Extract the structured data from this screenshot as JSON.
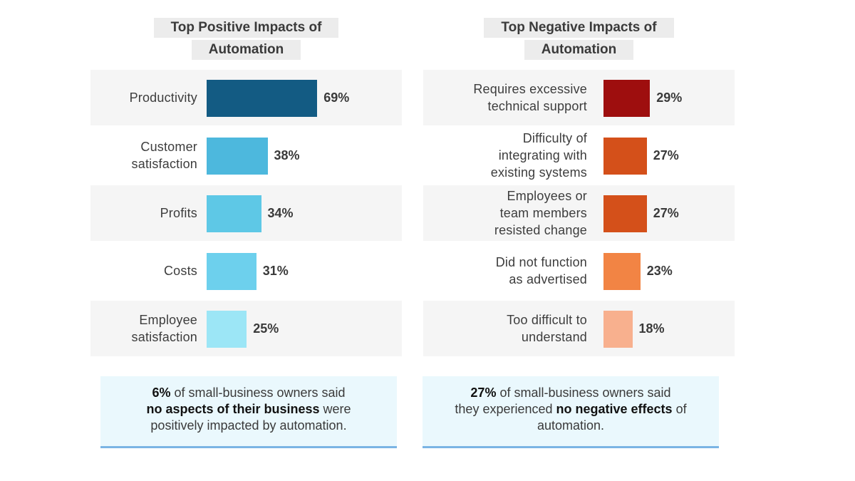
{
  "chart_data": [
    {
      "type": "bar",
      "orientation": "horizontal",
      "title_lines": [
        "Top Positive Impacts of",
        "Automation"
      ],
      "categories": [
        [
          "Productivity"
        ],
        [
          "Customer",
          "satisfaction"
        ],
        [
          "Profits"
        ],
        [
          "Costs"
        ],
        [
          "Employee",
          "satisfaction"
        ]
      ],
      "values": [
        69,
        38,
        34,
        31,
        25
      ],
      "value_labels": [
        "69%",
        "38%",
        "34%",
        "31%",
        "25%"
      ],
      "colors": [
        "#135b83",
        "#4db8dd",
        "#5ec8e6",
        "#6dd0ed",
        "#9ce6f6"
      ],
      "xlim": [
        0,
        100
      ]
    },
    {
      "type": "bar",
      "orientation": "horizontal",
      "title_lines": [
        "Top Negative Impacts of",
        "Automation"
      ],
      "categories": [
        [
          "Requires excessive",
          "technical support"
        ],
        [
          "Difficulty of",
          "integrating with",
          "existing systems"
        ],
        [
          "Employees or",
          "team members",
          "resisted change"
        ],
        [
          "Did not function",
          "as advertised"
        ],
        [
          "Too difficult to",
          "understand"
        ]
      ],
      "values": [
        29,
        27,
        27,
        23,
        18
      ],
      "value_labels": [
        "29%",
        "27%",
        "27%",
        "23%",
        "18%"
      ],
      "colors": [
        "#9e0e0e",
        "#d4501a",
        "#d4501a",
        "#f28444",
        "#f8b08e"
      ],
      "xlim": [
        0,
        100
      ]
    }
  ],
  "notes": {
    "left": {
      "line1_bold": "6%",
      "line1_rest": " of small-business owners said",
      "line2_bold": "no aspects of their business",
      "line2_rest": " were",
      "line3": "positively impacted by automation."
    },
    "right": {
      "line1_bold": "27%",
      "line1_rest": " of small-business owners said",
      "line2_pre": "they experienced ",
      "line2_bold": "no negative effects",
      "line2_rest": " of",
      "line3": "automation."
    }
  }
}
